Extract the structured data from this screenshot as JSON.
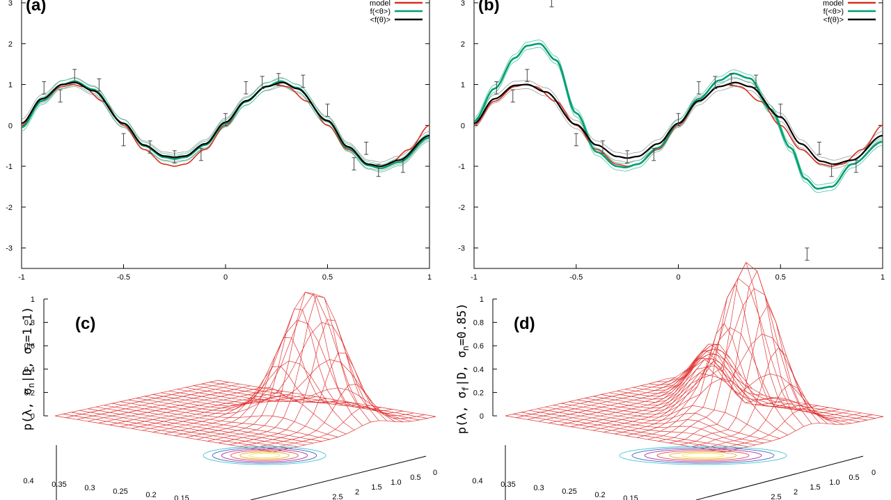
{
  "colors": {
    "model": "#d7301f",
    "f_mean_theta": "#009e73",
    "mean_f_theta": "#000000",
    "mesh": "#e03030",
    "band_gray": "#999999",
    "band_green": "#45c49a",
    "axis": "#000000"
  },
  "chart_data": [
    {
      "type": "line",
      "panel": "a",
      "label": "(a)",
      "xlim": [
        -1,
        1
      ],
      "ylim": [
        -3.5,
        3
      ],
      "xticks": [
        -1,
        -0.5,
        0,
        0.5,
        1
      ],
      "xtick_labels": [
        "-1",
        "-0.5",
        "0",
        "0.5",
        "1"
      ],
      "yticks": [
        -3,
        -2,
        -1,
        0,
        1,
        2,
        3
      ],
      "ytick_labels": [
        "-3",
        "-2",
        "-1",
        "0",
        "1",
        "2",
        "3"
      ],
      "legend": [
        {
          "name": "model",
          "color": "#d7301f"
        },
        {
          "name": "f(<θ>)",
          "color": "#009e73"
        },
        {
          "name": "<f(θ)>",
          "color": "#000000"
        }
      ],
      "series": [
        {
          "name": "model",
          "x": [
            -1,
            -0.9,
            -0.8,
            -0.75,
            -0.7,
            -0.6,
            -0.5,
            -0.4,
            -0.3,
            -0.25,
            -0.2,
            -0.1,
            0,
            0.1,
            0.2,
            0.25,
            0.3,
            0.4,
            0.5,
            0.6,
            0.7,
            0.75,
            0.8,
            0.9,
            1
          ],
          "y": [
            0,
            0.59,
            0.95,
            1,
            0.95,
            0.59,
            0,
            -0.59,
            -0.95,
            -1,
            -0.95,
            -0.59,
            0,
            0.59,
            0.95,
            1,
            0.95,
            0.59,
            0,
            -0.59,
            -0.95,
            -1,
            -0.95,
            -0.59,
            0
          ]
        },
        {
          "name": "f(<θ>)",
          "x": [
            -1,
            -0.9,
            -0.8,
            -0.74,
            -0.65,
            -0.5,
            -0.4,
            -0.3,
            -0.25,
            -0.2,
            -0.1,
            0,
            0.1,
            0.2,
            0.27,
            0.35,
            0.5,
            0.6,
            0.7,
            0.76,
            0.85,
            1
          ],
          "y": [
            -0.05,
            0.6,
            1.0,
            1.08,
            0.88,
            0.05,
            -0.5,
            -0.78,
            -0.82,
            -0.78,
            -0.48,
            0.05,
            0.58,
            0.95,
            1.08,
            0.92,
            0.1,
            -0.55,
            -0.98,
            -1.05,
            -0.9,
            -0.3
          ]
        },
        {
          "name": "<f(θ)>",
          "x": [
            -1,
            -0.9,
            -0.8,
            -0.74,
            -0.65,
            -0.5,
            -0.4,
            -0.3,
            -0.25,
            -0.2,
            -0.1,
            0,
            0.1,
            0.2,
            0.28,
            0.35,
            0.5,
            0.6,
            0.7,
            0.76,
            0.85,
            1
          ],
          "y": [
            0.05,
            0.65,
            1.0,
            1.05,
            0.85,
            0.05,
            -0.48,
            -0.75,
            -0.78,
            -0.75,
            -0.45,
            0.08,
            0.6,
            0.95,
            1.05,
            0.9,
            0.12,
            -0.52,
            -0.95,
            -1.0,
            -0.85,
            -0.25
          ]
        }
      ],
      "error_points": {
        "x": [
          -0.89,
          -0.81,
          -0.74,
          -0.62,
          -0.5,
          -0.37,
          -0.25,
          -0.12,
          0,
          0.1,
          0.18,
          0.26,
          0.38,
          0.5,
          0.63,
          0.69,
          0.75,
          0.87
        ],
        "y": [
          0.92,
          0.72,
          1.22,
          0.99,
          -0.35,
          -0.53,
          -0.77,
          -0.71,
          0.14,
          0.92,
          1.05,
          1.12,
          1.08,
          0.37,
          -0.94,
          -0.56,
          -1.1,
          -1.0
        ],
        "err": 0.15
      }
    },
    {
      "type": "line",
      "panel": "b",
      "label": "(b)",
      "xlim": [
        -1,
        1
      ],
      "ylim": [
        -3.5,
        3
      ],
      "xticks": [
        -1,
        -0.5,
        0,
        0.5,
        1
      ],
      "xtick_labels": [
        "-1",
        "-0.5",
        "0",
        "0.5",
        "1"
      ],
      "yticks": [
        -3,
        -2,
        -1,
        0,
        1,
        2,
        3
      ],
      "ytick_labels": [
        "-3",
        "-2",
        "-1",
        "0",
        "1",
        "2",
        "3"
      ],
      "legend": [
        {
          "name": "model",
          "color": "#d7301f"
        },
        {
          "name": "f(<θ>)",
          "color": "#009e73"
        },
        {
          "name": "<f(θ)>",
          "color": "#000000"
        }
      ],
      "series": [
        {
          "name": "model",
          "x": [
            -1,
            -0.9,
            -0.8,
            -0.75,
            -0.7,
            -0.6,
            -0.5,
            -0.4,
            -0.3,
            -0.25,
            -0.2,
            -0.1,
            0,
            0.1,
            0.2,
            0.25,
            0.3,
            0.4,
            0.5,
            0.6,
            0.7,
            0.75,
            0.8,
            0.9,
            1
          ],
          "y": [
            0,
            0.59,
            0.95,
            1,
            0.95,
            0.59,
            0,
            -0.59,
            -0.95,
            -1,
            -0.95,
            -0.59,
            0,
            0.59,
            0.95,
            1,
            0.95,
            0.59,
            0,
            -0.59,
            -0.95,
            -1,
            -0.95,
            -0.59,
            0
          ]
        },
        {
          "name": "f(<θ>)",
          "x": [
            -1,
            -0.9,
            -0.8,
            -0.74,
            -0.68,
            -0.6,
            -0.5,
            -0.4,
            -0.3,
            -0.26,
            -0.2,
            -0.1,
            0,
            0.1,
            0.2,
            0.27,
            0.35,
            0.45,
            0.55,
            0.62,
            0.68,
            0.75,
            0.85,
            1
          ],
          "y": [
            0.1,
            0.9,
            1.65,
            1.95,
            2.0,
            1.6,
            0.3,
            -0.65,
            -1.0,
            -1.03,
            -0.95,
            -0.55,
            0.05,
            0.65,
            1.1,
            1.27,
            1.15,
            0.4,
            -0.55,
            -1.3,
            -1.55,
            -1.5,
            -0.95,
            -0.4
          ]
        },
        {
          "name": "<f(θ)>",
          "x": [
            -1,
            -0.9,
            -0.8,
            -0.74,
            -0.65,
            -0.5,
            -0.4,
            -0.3,
            -0.25,
            -0.2,
            -0.1,
            0,
            0.1,
            0.2,
            0.28,
            0.35,
            0.5,
            0.6,
            0.7,
            0.76,
            0.85,
            1
          ],
          "y": [
            0.05,
            0.65,
            0.98,
            1.0,
            0.82,
            0.02,
            -0.48,
            -0.76,
            -0.8,
            -0.76,
            -0.45,
            0.05,
            0.6,
            0.95,
            1.05,
            0.95,
            0.2,
            -0.45,
            -0.88,
            -0.95,
            -0.85,
            -0.25
          ]
        }
      ],
      "error_points": {
        "x": [
          -0.89,
          -0.81,
          -0.74,
          -0.62,
          -0.5,
          -0.37,
          -0.25,
          -0.12,
          0,
          0.1,
          0.18,
          0.26,
          0.38,
          0.5,
          0.63,
          0.69,
          0.75,
          0.87
        ],
        "y": [
          0.92,
          0.72,
          1.22,
          3.05,
          -0.35,
          -0.53,
          -0.77,
          -0.71,
          0.14,
          0.92,
          1.05,
          1.12,
          1.08,
          0.37,
          -3.15,
          -0.56,
          -1.1,
          -1.0
        ],
        "err": 0.15
      }
    },
    {
      "type": "surface3d",
      "panel": "c",
      "label": "(c)",
      "zlabel": "p(λ, σ_n | D, σ_f=1.1)",
      "zlabel_parts": {
        "prefix": "p(λ, σ",
        "sub": "n",
        "mid": "|D, σ",
        "sub2": "f",
        "suffix": "=1.1)"
      },
      "zticks": [
        "0",
        "0.2",
        "0.4",
        "0.6",
        "0.8",
        "1"
      ],
      "x_ticks": [
        "0.4",
        "0.35",
        "0.3",
        "0.25",
        "0.2",
        "0.15"
      ],
      "y_ticks": [
        "2.5",
        "2",
        "1.5",
        "1.0",
        "0.5",
        "0"
      ],
      "peak": {
        "u": 0.72,
        "v": 0.62,
        "height": 1.0
      }
    },
    {
      "type": "surface3d",
      "panel": "d",
      "label": "(d)",
      "zlabel": "p(λ, σ_f | D, σ_n=0.85)",
      "zlabel_parts": {
        "prefix": "p(λ, σ",
        "sub": "f",
        "mid": "|D, σ",
        "sub2": "n",
        "suffix": "=0.85)"
      },
      "zticks": [
        "0",
        "0.2",
        "0.4",
        "0.6",
        "0.8",
        "1"
      ],
      "x_ticks": [
        "0.4",
        "0.35",
        "0.3",
        "0.25",
        "0.2",
        "0.15"
      ],
      "y_ticks": [
        "2.5",
        "2",
        "1.5",
        "1.0",
        "0.5",
        "0"
      ],
      "peak": {
        "u": 0.72,
        "v": 0.55,
        "height": 1.0
      }
    }
  ]
}
